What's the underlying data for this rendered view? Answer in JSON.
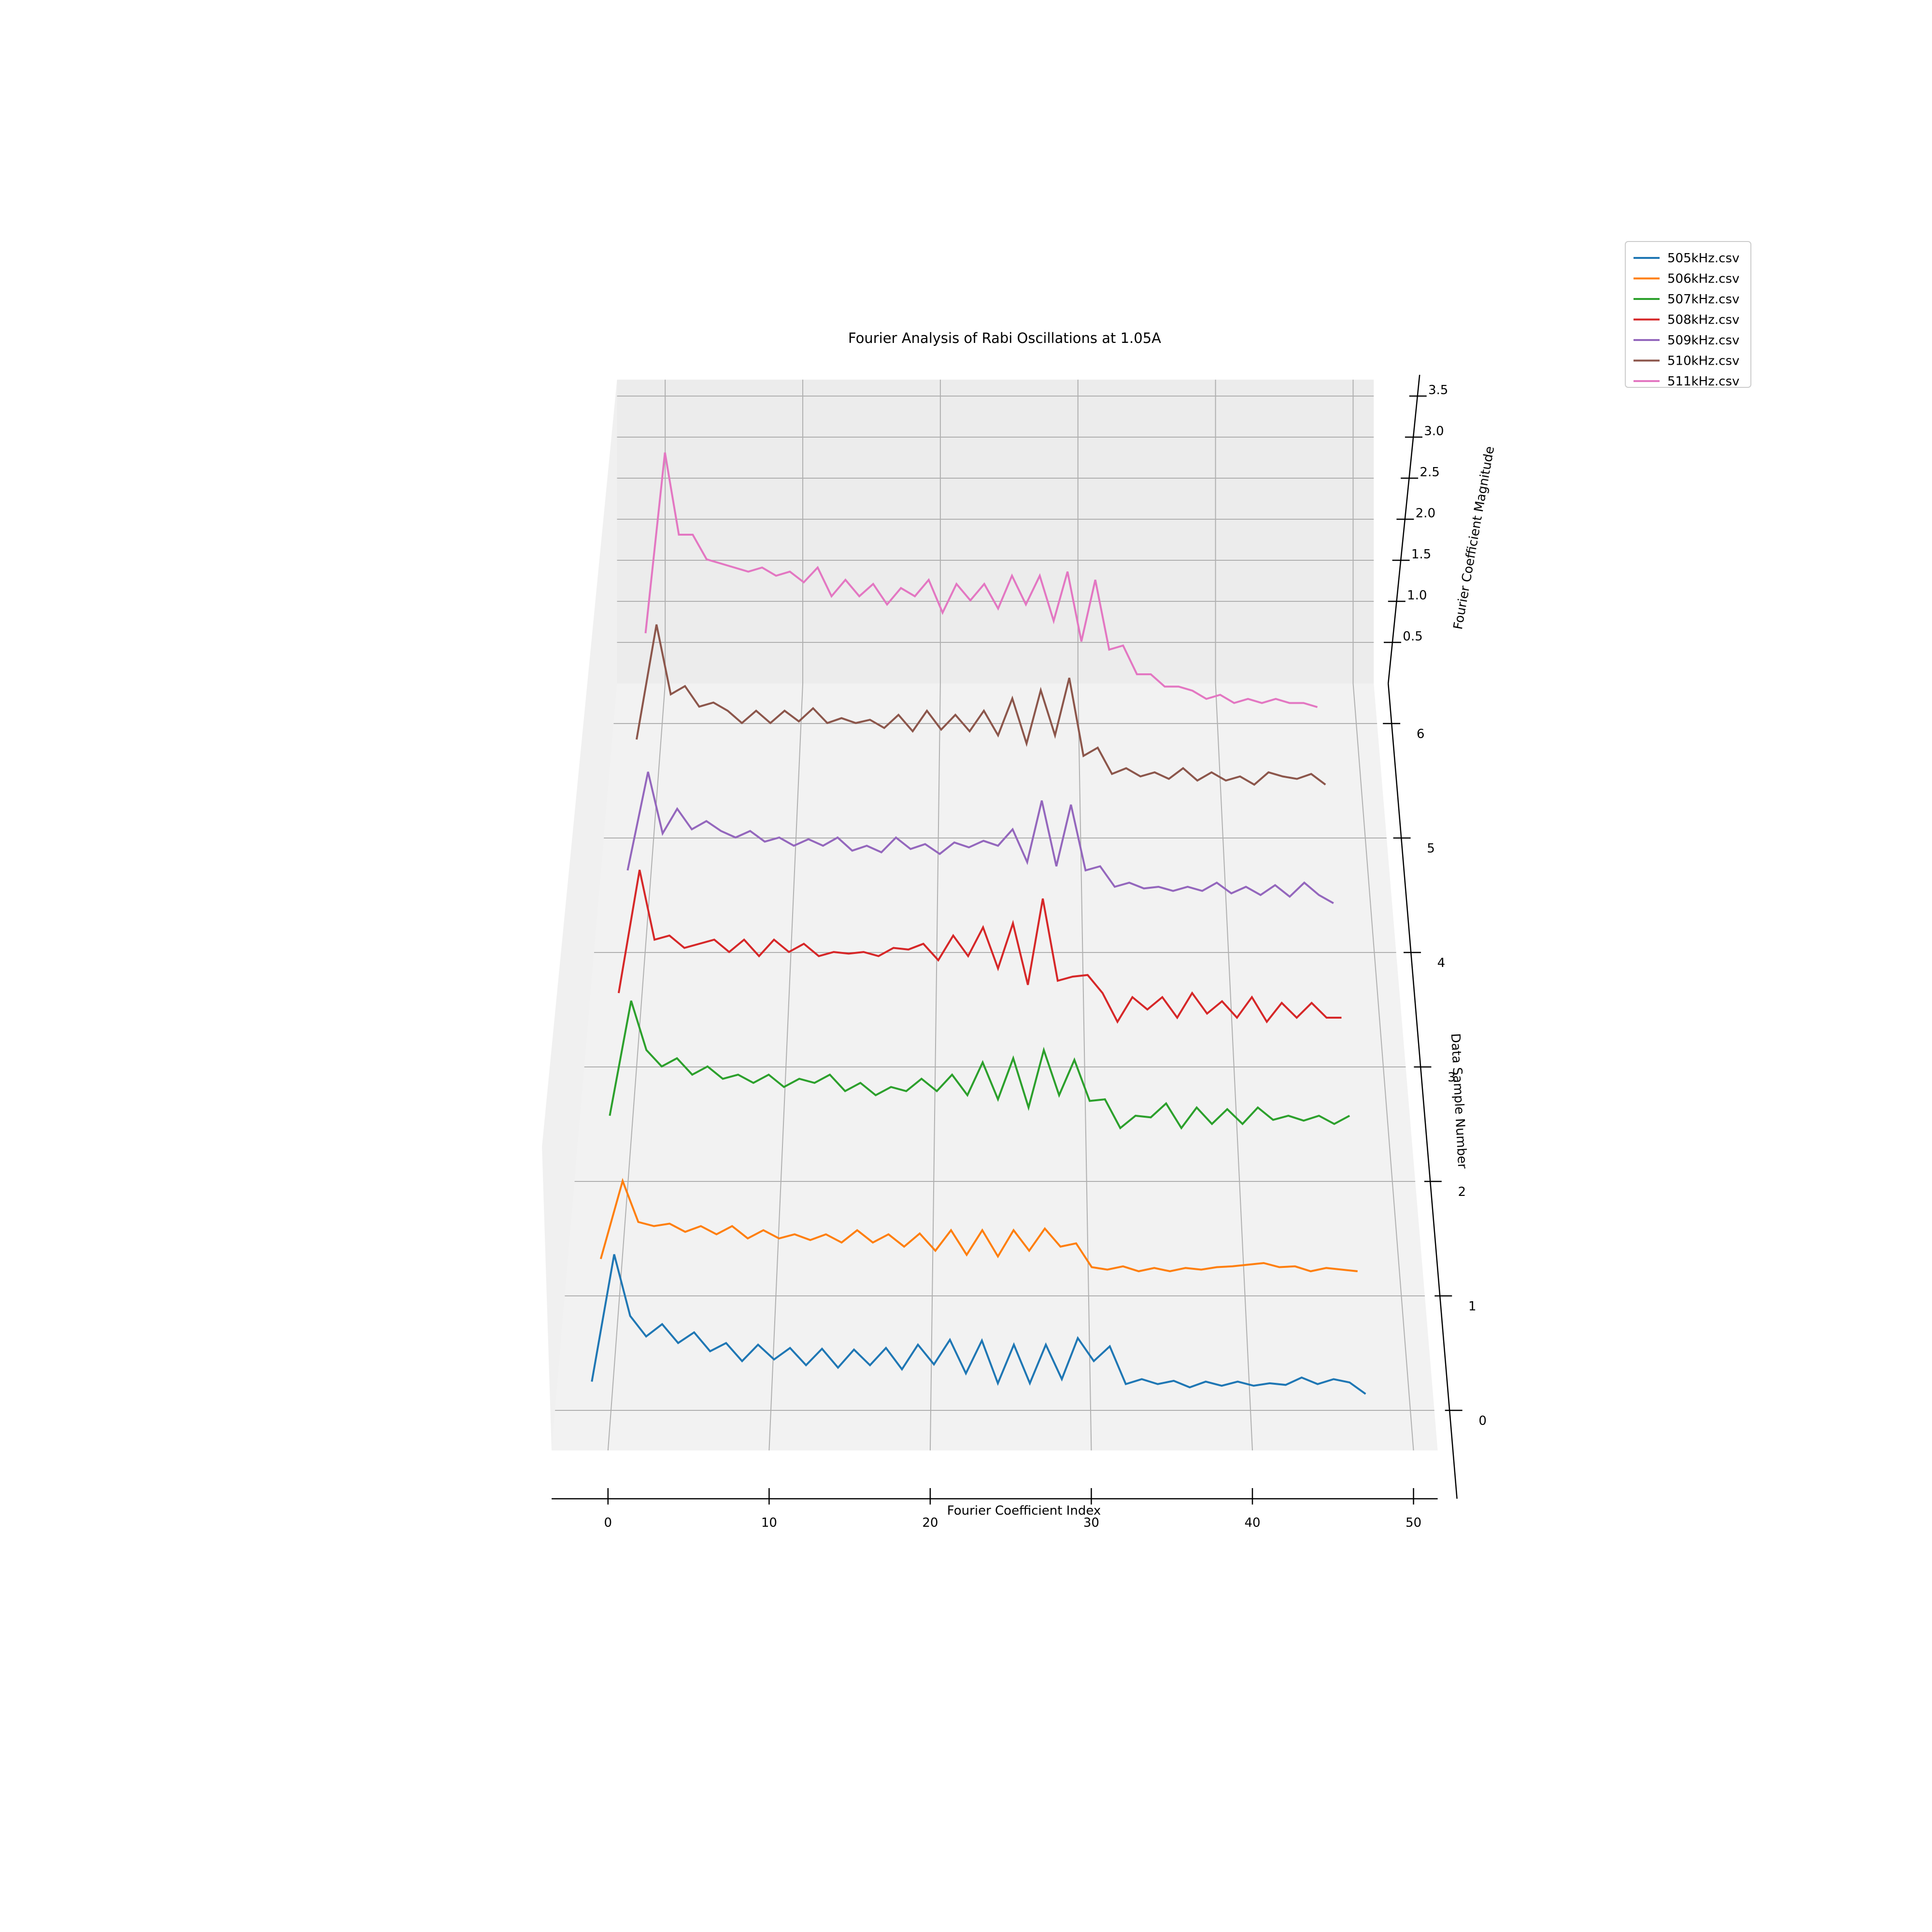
{
  "chart_data": {
    "type": "line",
    "projection": "3d",
    "title": "Fourier Analysis of Rabi Oscillations at 1.05A",
    "xlabel": "Fourier Coefficient Index",
    "ylabel": "Data Sample Number",
    "zlabel": "Fourier Coefficient Magnitude",
    "xlim": [
      -3.5,
      51.5
    ],
    "ylim": [
      -0.35,
      6.35
    ],
    "zlim": [
      0,
      3.7
    ],
    "x_ticks": [
      0,
      10,
      20,
      30,
      40,
      50
    ],
    "y_ticks": [
      0,
      1,
      2,
      3,
      4,
      5,
      6
    ],
    "z_ticks": [
      0.5,
      1.0,
      1.5,
      2.0,
      2.5,
      3.0,
      3.5
    ],
    "x_tick_labels": [
      "0",
      "10",
      "20",
      "30",
      "40",
      "50"
    ],
    "y_tick_labels": [
      "0",
      "1",
      "2",
      "3",
      "4",
      "5",
      "6"
    ],
    "z_tick_labels": [
      "0.5",
      "1.0",
      "1.5",
      "2.0",
      "2.5",
      "3.0",
      "3.5"
    ],
    "grid": true,
    "legend_position": "top-right",
    "x": [
      0,
      1,
      2,
      3,
      4,
      5,
      6,
      7,
      8,
      9,
      10,
      11,
      12,
      13,
      14,
      15,
      16,
      17,
      18,
      19,
      20,
      21,
      22,
      23,
      24,
      25,
      26,
      27,
      28,
      29,
      30,
      31,
      32,
      33,
      34,
      35,
      36,
      37,
      38,
      39,
      40,
      41,
      42,
      43,
      44,
      45,
      46,
      47,
      48
    ],
    "series": [
      {
        "name": "505kHz.csv",
        "sample": 0,
        "color": "#1f77b4",
        "values": [
          0.35,
          1.9,
          1.15,
          0.9,
          1.05,
          0.82,
          0.95,
          0.72,
          0.82,
          0.6,
          0.8,
          0.62,
          0.76,
          0.55,
          0.75,
          0.52,
          0.74,
          0.55,
          0.76,
          0.5,
          0.8,
          0.56,
          0.86,
          0.45,
          0.85,
          0.33,
          0.8,
          0.33,
          0.8,
          0.38,
          0.88,
          0.6,
          0.78,
          0.32,
          0.38,
          0.32,
          0.36,
          0.28,
          0.35,
          0.3,
          0.35,
          0.3,
          0.33,
          0.31,
          0.4,
          0.32,
          0.38,
          0.34,
          0.2
        ]
      },
      {
        "name": "506kHz.csv",
        "sample": 1,
        "color": "#ff7f0e",
        "values": [
          0.45,
          1.4,
          0.9,
          0.85,
          0.88,
          0.78,
          0.85,
          0.75,
          0.85,
          0.7,
          0.8,
          0.7,
          0.75,
          0.68,
          0.75,
          0.65,
          0.8,
          0.65,
          0.75,
          0.6,
          0.76,
          0.55,
          0.8,
          0.5,
          0.8,
          0.48,
          0.8,
          0.55,
          0.82,
          0.6,
          0.64,
          0.35,
          0.32,
          0.36,
          0.3,
          0.34,
          0.3,
          0.34,
          0.32,
          0.35,
          0.36,
          0.38,
          0.4,
          0.35,
          0.36,
          0.3,
          0.34,
          0.32,
          0.3
        ]
      },
      {
        "name": "507kHz.csv",
        "sample": 2,
        "color": "#2ca02c",
        "values": [
          0.8,
          2.2,
          1.6,
          1.4,
          1.5,
          1.3,
          1.4,
          1.25,
          1.3,
          1.2,
          1.3,
          1.15,
          1.25,
          1.2,
          1.3,
          1.1,
          1.2,
          1.05,
          1.15,
          1.1,
          1.25,
          1.1,
          1.3,
          1.05,
          1.45,
          1.0,
          1.5,
          0.9,
          1.6,
          1.05,
          1.48,
          0.98,
          1.0,
          0.65,
          0.8,
          0.78,
          0.95,
          0.65,
          0.9,
          0.7,
          0.88,
          0.7,
          0.9,
          0.75,
          0.8,
          0.74,
          0.8,
          0.7,
          0.8
        ]
      },
      {
        "name": "508kHz.csv",
        "sample": 3,
        "color": "#d62728",
        "values": [
          0.9,
          2.4,
          1.55,
          1.6,
          1.45,
          1.5,
          1.55,
          1.4,
          1.55,
          1.35,
          1.55,
          1.4,
          1.5,
          1.35,
          1.4,
          1.38,
          1.4,
          1.35,
          1.45,
          1.43,
          1.5,
          1.3,
          1.6,
          1.35,
          1.7,
          1.2,
          1.75,
          1.0,
          2.05,
          1.05,
          1.1,
          1.12,
          0.9,
          0.55,
          0.85,
          0.7,
          0.85,
          0.6,
          0.9,
          0.65,
          0.8,
          0.6,
          0.85,
          0.55,
          0.78,
          0.6,
          0.78,
          0.6,
          0.6
        ]
      },
      {
        "name": "509kHz.csv",
        "sample": 4,
        "color": "#9467bd",
        "values": [
          1.0,
          2.2,
          1.45,
          1.75,
          1.5,
          1.6,
          1.48,
          1.4,
          1.48,
          1.35,
          1.4,
          1.3,
          1.38,
          1.3,
          1.4,
          1.24,
          1.3,
          1.22,
          1.4,
          1.26,
          1.32,
          1.2,
          1.34,
          1.28,
          1.36,
          1.3,
          1.5,
          1.1,
          1.85,
          1.05,
          1.8,
          1.0,
          1.05,
          0.8,
          0.85,
          0.78,
          0.8,
          0.75,
          0.8,
          0.75,
          0.85,
          0.72,
          0.8,
          0.7,
          0.82,
          0.68,
          0.85,
          0.7,
          0.6
        ]
      },
      {
        "name": "510kHz.csv",
        "sample": 5,
        "color": "#8c564b",
        "values": [
          1.2,
          2.6,
          1.75,
          1.85,
          1.6,
          1.65,
          1.55,
          1.4,
          1.55,
          1.4,
          1.55,
          1.42,
          1.58,
          1.4,
          1.46,
          1.4,
          1.44,
          1.34,
          1.5,
          1.3,
          1.55,
          1.32,
          1.5,
          1.3,
          1.55,
          1.25,
          1.7,
          1.15,
          1.8,
          1.25,
          1.95,
          1.0,
          1.1,
          0.78,
          0.85,
          0.75,
          0.8,
          0.72,
          0.85,
          0.7,
          0.8,
          0.7,
          0.75,
          0.65,
          0.8,
          0.75,
          0.72,
          0.78,
          0.65
        ]
      },
      {
        "name": "511kHz.csv",
        "sample": 6,
        "color": "#e377c2",
        "values": [
          1.1,
          3.3,
          2.3,
          2.3,
          2.0,
          1.95,
          1.9,
          1.85,
          1.9,
          1.8,
          1.85,
          1.72,
          1.9,
          1.55,
          1.75,
          1.55,
          1.7,
          1.45,
          1.65,
          1.55,
          1.75,
          1.35,
          1.7,
          1.5,
          1.7,
          1.4,
          1.8,
          1.45,
          1.8,
          1.25,
          1.85,
          1.0,
          1.75,
          0.9,
          0.95,
          0.6,
          0.6,
          0.45,
          0.45,
          0.4,
          0.3,
          0.35,
          0.25,
          0.3,
          0.25,
          0.3,
          0.25,
          0.25,
          0.2
        ]
      }
    ]
  }
}
